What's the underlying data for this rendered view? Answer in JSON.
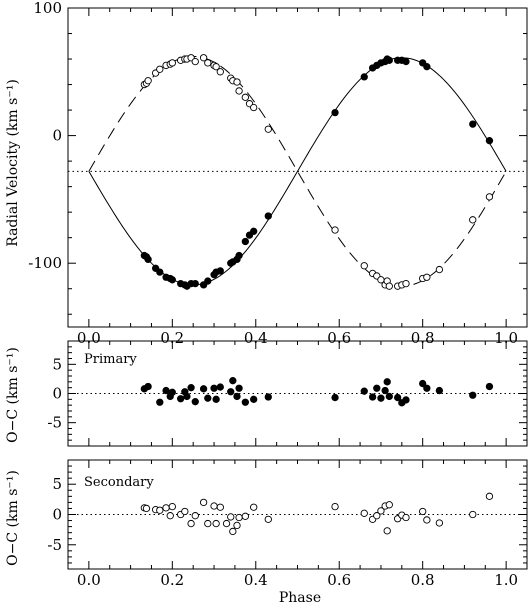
{
  "chart_data": [
    {
      "type": "scatter",
      "ylabel": "Radial Velocity (km s⁻¹)",
      "xlim": [
        -0.05,
        1.05
      ],
      "ylim": [
        -150,
        100
      ],
      "yticks": [
        100,
        0,
        -100
      ],
      "xticks": [
        0.0,
        0.2,
        0.4,
        0.6,
        0.8,
        1.0
      ],
      "gamma": -28,
      "model": {
        "primary": {
          "amplitude_km_s": 89,
          "line_style": "solid"
        },
        "secondary": {
          "amplitude_km_s": 90,
          "line_style": "dashed"
        },
        "systemic_line_style": "dotted"
      },
      "series": [
        {
          "marker": "filled-circle",
          "x": [
            0.133,
            0.138,
            0.142,
            0.16,
            0.17,
            0.185,
            0.195,
            0.2,
            0.22,
            0.23,
            0.235,
            0.245,
            0.255,
            0.275,
            0.285,
            0.3,
            0.305,
            0.315,
            0.34,
            0.345,
            0.355,
            0.36,
            0.375,
            0.385,
            0.395,
            0.43,
            0.59,
            0.66,
            0.68,
            0.69,
            0.7,
            0.71,
            0.715,
            0.72,
            0.74,
            0.75,
            0.76,
            0.8,
            0.81,
            0.92,
            0.96
          ],
          "y": [
            -94,
            -95,
            -97,
            -104,
            -107,
            -111,
            -112,
            -113,
            -116,
            -117,
            -118,
            -116,
            -116,
            -117,
            -114,
            -109,
            -107,
            -106,
            -100,
            -99,
            -97,
            -94,
            -83,
            -78,
            -75,
            -63,
            18,
            46,
            53,
            55,
            57,
            58,
            60,
            59,
            59,
            59,
            58,
            57,
            54,
            9,
            -4
          ]
        },
        {
          "marker": "open-circle",
          "x": [
            0.133,
            0.138,
            0.142,
            0.16,
            0.17,
            0.185,
            0.195,
            0.2,
            0.22,
            0.23,
            0.235,
            0.245,
            0.255,
            0.275,
            0.285,
            0.3,
            0.305,
            0.315,
            0.34,
            0.345,
            0.355,
            0.36,
            0.375,
            0.385,
            0.395,
            0.43,
            0.59,
            0.66,
            0.68,
            0.69,
            0.7,
            0.71,
            0.715,
            0.72,
            0.74,
            0.75,
            0.76,
            0.8,
            0.81,
            0.84,
            0.92,
            0.96
          ],
          "y": [
            40,
            41,
            43,
            49,
            52,
            55,
            56,
            57,
            59,
            60,
            60,
            61,
            58,
            61,
            57,
            55,
            54,
            50,
            45,
            43,
            42,
            35,
            30,
            25,
            22,
            5,
            -74,
            -102,
            -108,
            -110,
            -113,
            -117,
            -114,
            -118,
            -118,
            -117,
            -116,
            -112,
            -111,
            -105,
            -66,
            -48
          ]
        }
      ]
    },
    {
      "type": "scatter",
      "panel_label": "Primary",
      "ylabel": "O−C (km s⁻¹)",
      "xlim": [
        -0.05,
        1.05
      ],
      "ylim": [
        -9,
        9
      ],
      "yticks": [
        5,
        0,
        -5
      ],
      "series": [
        {
          "marker": "filled-circle",
          "x": [
            0.133,
            0.142,
            0.17,
            0.185,
            0.195,
            0.2,
            0.22,
            0.23,
            0.235,
            0.245,
            0.255,
            0.275,
            0.285,
            0.3,
            0.305,
            0.315,
            0.34,
            0.345,
            0.355,
            0.36,
            0.375,
            0.395,
            0.43,
            0.59,
            0.66,
            0.68,
            0.69,
            0.7,
            0.71,
            0.715,
            0.72,
            0.74,
            0.75,
            0.76,
            0.8,
            0.81,
            0.84,
            0.92,
            0.96
          ],
          "y": [
            0.8,
            1.2,
            -1.5,
            0.5,
            -0.5,
            0.2,
            -0.9,
            0.3,
            -0.5,
            1.0,
            -1.4,
            0.8,
            -0.8,
            0.9,
            -1.0,
            1.1,
            0.3,
            2.2,
            -0.5,
            0.9,
            -1.5,
            -1.0,
            -0.6,
            -0.7,
            0.4,
            -0.6,
            0.9,
            -0.8,
            0.5,
            2.0,
            -0.5,
            -0.7,
            -1.6,
            -1.1,
            1.7,
            0.9,
            0.5,
            -0.3,
            1.2
          ]
        }
      ]
    },
    {
      "type": "scatter",
      "panel_label": "Secondary",
      "ylabel": "O−C (km s⁻¹)",
      "xlabel": "Phase",
      "xlim": [
        -0.05,
        1.05
      ],
      "ylim": [
        -9,
        9
      ],
      "yticks": [
        5,
        0,
        -5
      ],
      "xticks": [
        0.0,
        0.2,
        0.4,
        0.6,
        0.8,
        1.0
      ],
      "series": [
        {
          "marker": "open-circle",
          "x": [
            0.133,
            0.138,
            0.16,
            0.17,
            0.185,
            0.195,
            0.2,
            0.22,
            0.23,
            0.245,
            0.255,
            0.275,
            0.285,
            0.3,
            0.305,
            0.315,
            0.33,
            0.34,
            0.345,
            0.355,
            0.36,
            0.375,
            0.395,
            0.43,
            0.59,
            0.66,
            0.68,
            0.69,
            0.7,
            0.71,
            0.715,
            0.72,
            0.74,
            0.75,
            0.76,
            0.8,
            0.81,
            0.84,
            0.92,
            0.96
          ],
          "y": [
            1.1,
            1.0,
            0.8,
            0.7,
            1.1,
            -0.2,
            1.3,
            0.0,
            0.5,
            -1.5,
            -0.2,
            2.0,
            -1.5,
            1.4,
            -1.5,
            1.2,
            -1.5,
            -0.4,
            -2.8,
            -1.8,
            -0.5,
            -0.3,
            1.2,
            -0.8,
            1.3,
            0.2,
            -0.8,
            -0.2,
            0.6,
            1.4,
            -2.7,
            1.6,
            -0.7,
            -0.1,
            -0.5,
            0.5,
            -0.9,
            -1.4,
            0.0,
            3.0
          ]
        }
      ]
    }
  ]
}
